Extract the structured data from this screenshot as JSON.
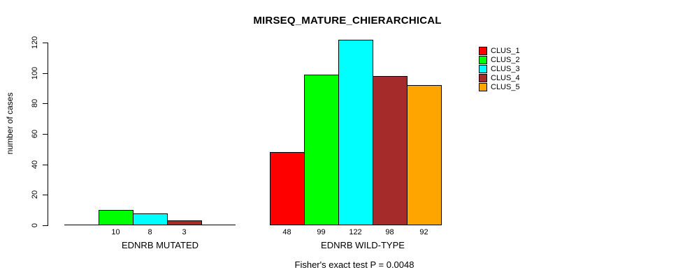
{
  "chart_data": {
    "type": "bar",
    "title": "MIRSEQ_MATURE_CHIERARCHICAL",
    "ylabel": "number of cases",
    "ylim": [
      0,
      120
    ],
    "yticks": [
      0,
      20,
      40,
      60,
      80,
      100,
      120
    ],
    "grid": false,
    "legend_position": "top-right",
    "categories": [
      "EDNRB MUTATED",
      "EDNRB WILD-TYPE"
    ],
    "series": [
      {
        "name": "CLUS_1",
        "color": "#FF0000",
        "values": [
          0,
          48
        ]
      },
      {
        "name": "CLUS_2",
        "color": "#00FF00",
        "values": [
          10,
          99
        ]
      },
      {
        "name": "CLUS_3",
        "color": "#00FFFF",
        "values": [
          8,
          122
        ]
      },
      {
        "name": "CLUS_4",
        "color": "#A52A2A",
        "values": [
          3,
          98
        ]
      },
      {
        "name": "CLUS_5",
        "color": "#FFA500",
        "values": [
          0,
          92
        ]
      }
    ],
    "annotation": "Fisher's exact test P = 0.0048"
  }
}
